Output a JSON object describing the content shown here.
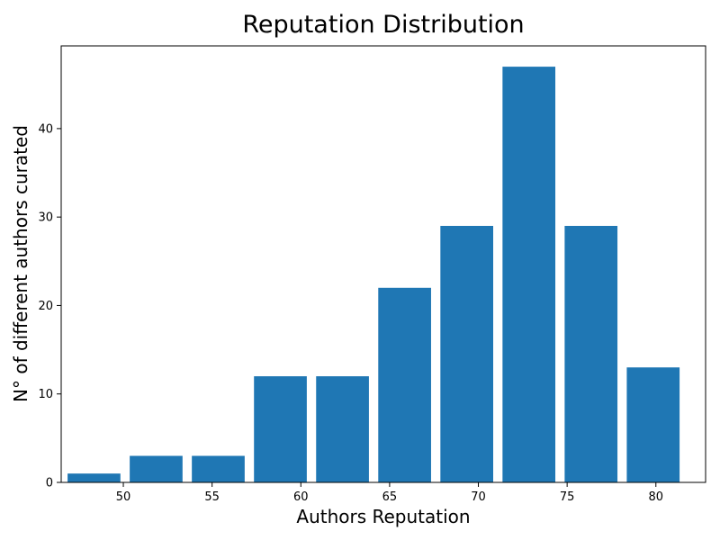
{
  "chart_data": {
    "type": "bar",
    "title": "Reputation Distribution",
    "xlabel": "Authors Reputation",
    "ylabel": "N° of different authors curated",
    "bar_color": "#1f77b4",
    "x_ticks": [
      50,
      55,
      60,
      65,
      70,
      75,
      80
    ],
    "y_ticks": [
      0,
      10,
      20,
      30,
      40
    ],
    "xlim": [
      46.5,
      82.8
    ],
    "ylim": [
      0,
      49.35
    ],
    "bin_width": 3.5,
    "bar_width_ratio": 0.85,
    "bins": [
      {
        "x_start": 46.86,
        "value": 1
      },
      {
        "x_start": 50.36,
        "value": 3
      },
      {
        "x_start": 53.86,
        "value": 3
      },
      {
        "x_start": 57.36,
        "value": 12
      },
      {
        "x_start": 60.86,
        "value": 12
      },
      {
        "x_start": 64.36,
        "value": 22
      },
      {
        "x_start": 67.86,
        "value": 29
      },
      {
        "x_start": 71.36,
        "value": 47
      },
      {
        "x_start": 74.86,
        "value": 29
      },
      {
        "x_start": 78.36,
        "value": 13
      }
    ],
    "grid": false,
    "legend": "none"
  }
}
